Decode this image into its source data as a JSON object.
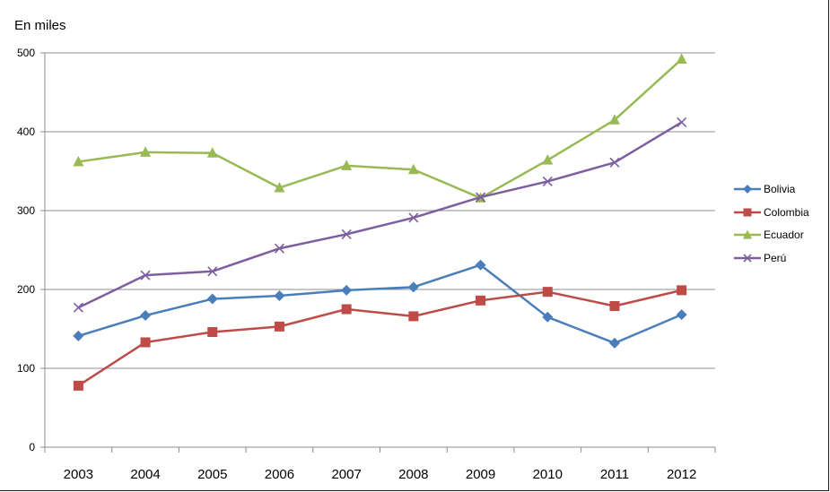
{
  "chart_data": {
    "type": "line",
    "ylabel": "En miles",
    "categories": [
      "2003",
      "2004",
      "2005",
      "2006",
      "2007",
      "2008",
      "2009",
      "2010",
      "2011",
      "2012"
    ],
    "ylim": [
      0,
      500
    ],
    "yticks": [
      "0",
      "100",
      "200",
      "300",
      "400",
      "500"
    ],
    "grid": true,
    "legend_position": "right",
    "series": [
      {
        "name": "Bolivia",
        "color": "#4a7ebb",
        "marker": "diamond",
        "values": [
          141,
          167,
          188,
          192,
          199,
          203,
          231,
          165,
          132,
          168
        ]
      },
      {
        "name": "Colombia",
        "color": "#be4b48",
        "marker": "square",
        "values": [
          78,
          133,
          146,
          153,
          175,
          166,
          186,
          197,
          179,
          199
        ]
      },
      {
        "name": "Ecuador",
        "color": "#98b954",
        "marker": "triangle",
        "values": [
          362,
          374,
          373,
          329,
          357,
          352,
          316,
          364,
          415,
          492
        ]
      },
      {
        "name": "Perú",
        "color": "#7d5fa0",
        "marker": "x",
        "values": [
          177,
          218,
          223,
          252,
          270,
          291,
          317,
          337,
          361,
          412
        ]
      }
    ]
  }
}
